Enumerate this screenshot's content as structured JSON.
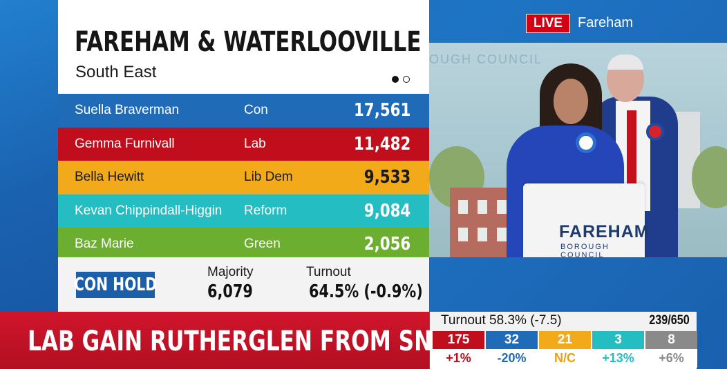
{
  "result": {
    "constituency": "FAREHAM & WATERLOOVILLE",
    "region": "South East",
    "candidates": [
      {
        "name": "Suella Braverman",
        "party": "Con",
        "votes": "17,561",
        "color": "#1f6bb8",
        "text_color": "#ffffff"
      },
      {
        "name": "Gemma Furnivall",
        "party": "Lab",
        "votes": "11,482",
        "color": "#c10e1c",
        "text_color": "#ffffff"
      },
      {
        "name": "Bella Hewitt",
        "party": "Lib Dem",
        "votes": "9,533",
        "color": "#f2a91a",
        "text_color": "#1a1a1a"
      },
      {
        "name": "Kevan Chippindall-Higgin",
        "party": "Reform",
        "votes": "9,084",
        "color": "#23bdc2",
        "text_color": "#ffffff"
      },
      {
        "name": "Baz Marie",
        "party": "Green",
        "votes": "2,056",
        "color": "#6cae2f",
        "text_color": "#ffffff"
      }
    ],
    "outcome": "CON HOLD",
    "majority_label": "Majority",
    "majority_value": "6,079",
    "turnout_label": "Turnout",
    "turnout_value": "64.5% (-0.9%)"
  },
  "live": {
    "badge": "LIVE",
    "location": "Fareham",
    "backdrop_text": "OUGH COUNCIL",
    "lectern_title": "FAREHAM",
    "lectern_subtitle": "BOROUGH COUNCIL"
  },
  "ticker": {
    "headline": "LAB GAIN RUTHERGLEN FROM SNP"
  },
  "tally": {
    "turnout": "Turnout 58.3% (-7.5)",
    "seats_declared": "239/650",
    "parties": [
      {
        "seats": "175",
        "change": "+1%",
        "color": "#c10e1c",
        "change_color": "#c10e1c"
      },
      {
        "seats": "32",
        "change": "-20%",
        "color": "#1f6bb8",
        "change_color": "#1f6bb8"
      },
      {
        "seats": "21",
        "change": "N/C",
        "color": "#f2a91a",
        "change_color": "#e8a010"
      },
      {
        "seats": "3",
        "change": "+13%",
        "color": "#23bdc2",
        "change_color": "#23bdc2"
      },
      {
        "seats": "8",
        "change": "+6%",
        "color": "#8a8a8a",
        "change_color": "#8a8a8a"
      }
    ]
  }
}
